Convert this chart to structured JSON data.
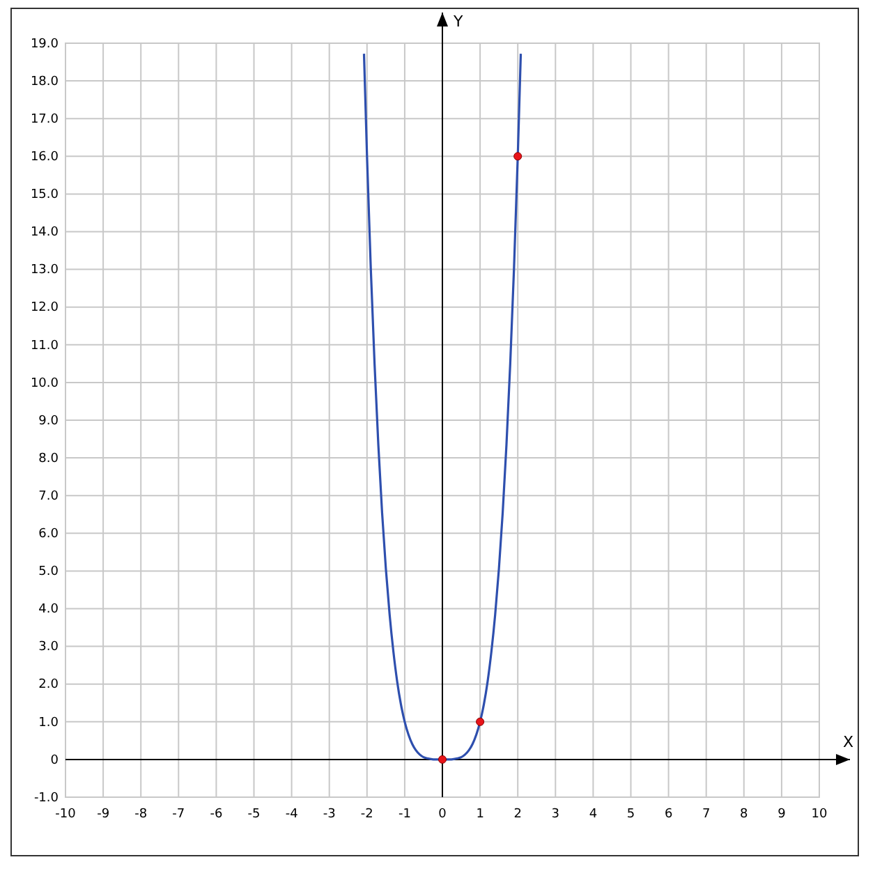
{
  "chart_data": {
    "type": "line",
    "xlabel": "X",
    "ylabel": "Y",
    "xlim": [
      -10,
      10
    ],
    "ylim": [
      -1,
      19
    ],
    "xticks": [
      -10,
      -9,
      -8,
      -7,
      -6,
      -5,
      -4,
      -3,
      -2,
      -1,
      0,
      1,
      2,
      3,
      4,
      5,
      6,
      7,
      8,
      9,
      10
    ],
    "yticks": [
      {
        "value": -1,
        "label": "-1.0"
      },
      {
        "value": 0,
        "label": "0"
      },
      {
        "value": 1,
        "label": "1.0"
      },
      {
        "value": 2,
        "label": "2.0"
      },
      {
        "value": 3,
        "label": "3.0"
      },
      {
        "value": 4,
        "label": "4.0"
      },
      {
        "value": 5,
        "label": "5.0"
      },
      {
        "value": 6,
        "label": "6.0"
      },
      {
        "value": 7,
        "label": "7.0"
      },
      {
        "value": 8,
        "label": "8.0"
      },
      {
        "value": 9,
        "label": "9.0"
      },
      {
        "value": 10,
        "label": "10.0"
      },
      {
        "value": 11,
        "label": "11.0"
      },
      {
        "value": 12,
        "label": "12.0"
      },
      {
        "value": 13,
        "label": "13.0"
      },
      {
        "value": 14,
        "label": "14.0"
      },
      {
        "value": 15,
        "label": "15.0"
      },
      {
        "value": 16,
        "label": "16.0"
      },
      {
        "value": 17,
        "label": "17.0"
      },
      {
        "value": 18,
        "label": "18.0"
      },
      {
        "value": 19,
        "label": "19.0"
      }
    ],
    "grid": true,
    "series": [
      {
        "color": "#2e4fae",
        "marker": "none",
        "line_style": "solid",
        "x": [
          -2.08,
          -2,
          -1.9,
          -1.8,
          -1.7,
          -1.6,
          -1.5,
          -1.4,
          -1.3,
          -1.2,
          -1.1,
          -1,
          -0.9,
          -0.8,
          -0.7,
          -0.6,
          -0.5,
          -0.4,
          -0.3,
          -0.2,
          -0.1,
          0,
          0.1,
          0.2,
          0.3,
          0.4,
          0.5,
          0.6,
          0.7,
          0.8,
          0.9,
          1,
          1.1,
          1.2,
          1.3,
          1.4,
          1.5,
          1.6,
          1.7,
          1.8,
          1.9,
          2,
          2.08
        ],
        "values": [
          18.72,
          16,
          13.03,
          10.5,
          8.35,
          6.55,
          5.06,
          3.84,
          2.86,
          2.07,
          1.46,
          1,
          0.66,
          0.41,
          0.24,
          0.13,
          0.06,
          0.03,
          0.01,
          0,
          0,
          0,
          0,
          0,
          0.01,
          0.03,
          0.06,
          0.13,
          0.24,
          0.41,
          0.66,
          1,
          1.46,
          2.07,
          2.86,
          3.84,
          5.06,
          6.55,
          8.35,
          10.5,
          13.03,
          16,
          18.72
        ]
      },
      {
        "type": "scatter",
        "color": "#e8141a",
        "marker": "circle",
        "x": [
          0,
          1,
          2
        ],
        "values": [
          0,
          1,
          16
        ]
      }
    ]
  }
}
